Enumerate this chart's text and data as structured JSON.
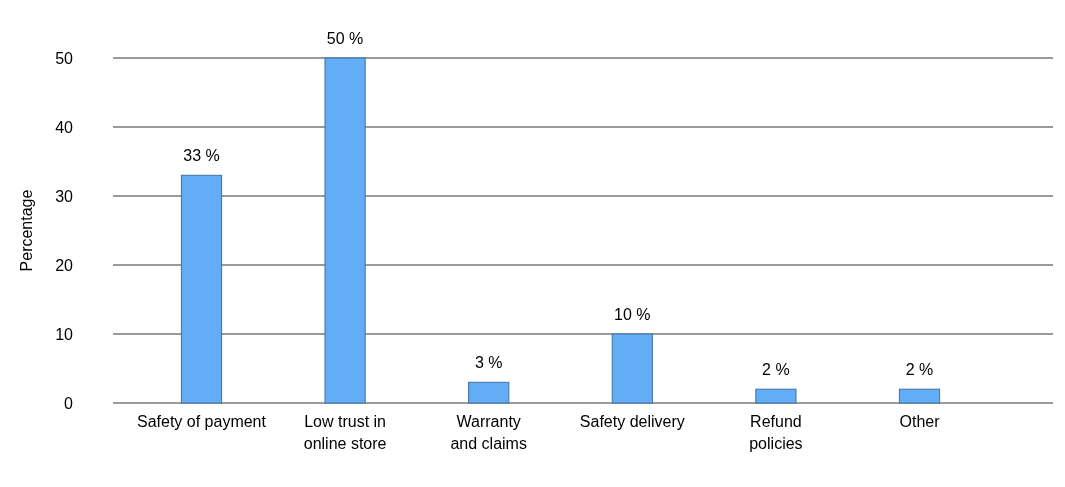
{
  "chart_data": {
    "type": "bar",
    "ylabel": "Percentage",
    "categories": [
      "Safety of payment",
      "Low trust in\nonline store",
      "Warranty\nand claims",
      "Safety delivery",
      "Refund\npolicies",
      "Other"
    ],
    "values": [
      33,
      50,
      3,
      10,
      2,
      2
    ],
    "value_labels": [
      "33 %",
      "50 %",
      "3 %",
      "10 %",
      "2 %",
      "2 %"
    ],
    "color": "#62adf5",
    "ylim": [
      0,
      50
    ],
    "yticks": [
      0,
      10,
      20,
      30,
      40,
      50
    ],
    "grid": "y"
  }
}
